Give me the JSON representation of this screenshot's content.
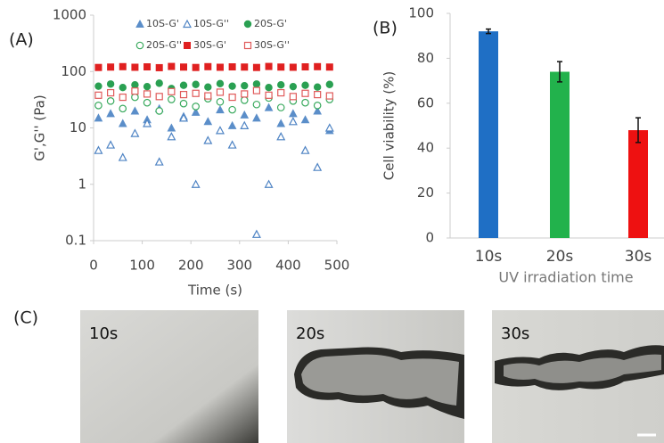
{
  "chart_data": [
    {
      "type": "scatter",
      "panel_label": "(A)",
      "x_label": "Time (s)",
      "y_label": "G',G'' (Pa)",
      "log_y": true,
      "xlim": [
        0,
        500
      ],
      "xticks": [
        0,
        100,
        200,
        300,
        400,
        500
      ],
      "ylim": [
        0.1,
        1000
      ],
      "yticks": [
        0.1,
        1,
        10,
        100,
        1000
      ],
      "x": [
        10,
        35,
        60,
        85,
        110,
        135,
        160,
        185,
        210,
        235,
        260,
        285,
        310,
        335,
        360,
        385,
        410,
        435,
        460,
        485
      ],
      "series": [
        {
          "name": "10S-G'",
          "color": "#5b8ec9",
          "marker": "triangle",
          "filled": true,
          "values": [
            15,
            18,
            12,
            20,
            14,
            22,
            10,
            16,
            19,
            13,
            21,
            11,
            17,
            15,
            23,
            12,
            18,
            14,
            20,
            9
          ]
        },
        {
          "name": "10S-G''",
          "color": "#4f84c4",
          "marker": "triangle",
          "filled": false,
          "values": [
            4,
            5,
            3,
            8,
            12,
            2.5,
            7,
            15,
            1,
            6,
            9,
            5,
            11,
            0.13,
            1,
            7,
            13,
            4,
            2,
            10
          ]
        },
        {
          "name": "20S-G'",
          "color": "#2aa052",
          "marker": "circle",
          "filled": true,
          "values": [
            55,
            60,
            52,
            58,
            54,
            62,
            50,
            57,
            59,
            53,
            61,
            55,
            56,
            60,
            52,
            58,
            54,
            57,
            53,
            59
          ]
        },
        {
          "name": "20S-G''",
          "color": "#3aaa5e",
          "marker": "circle",
          "filled": false,
          "values": [
            25,
            30,
            22,
            35,
            28,
            20,
            32,
            27,
            24,
            33,
            29,
            21,
            31,
            26,
            34,
            23,
            30,
            28,
            25,
            32
          ]
        },
        {
          "name": "30S-G'",
          "color": "#e02020",
          "marker": "square",
          "filled": true,
          "values": [
            118,
            120,
            122,
            119,
            121,
            117,
            123,
            120,
            118,
            122,
            119,
            121,
            120,
            118,
            123,
            120,
            119,
            121,
            122,
            120
          ]
        },
        {
          "name": "30S-G''",
          "color": "#e05a5a",
          "marker": "square",
          "filled": false,
          "values": [
            38,
            42,
            35,
            45,
            40,
            36,
            44,
            39,
            41,
            37,
            43,
            35,
            40,
            46,
            38,
            42,
            36,
            41,
            39,
            37
          ]
        }
      ]
    },
    {
      "type": "bar",
      "panel_label": "(B)",
      "x_label": "UV irradiation time",
      "y_label": "Cell viability (%)",
      "categories": [
        "10s",
        "20s",
        "30s"
      ],
      "values": [
        92,
        74,
        48
      ],
      "errors": [
        1,
        4.5,
        5.5
      ],
      "colors": [
        "#1f6fc5",
        "#22b24c",
        "#ee1111"
      ],
      "ylim": [
        0,
        100
      ],
      "yticks": [
        0,
        20,
        40,
        60,
        80,
        100
      ]
    }
  ],
  "panel_c": {
    "label": "(C)",
    "images": [
      "10s",
      "20s",
      "30s"
    ]
  }
}
